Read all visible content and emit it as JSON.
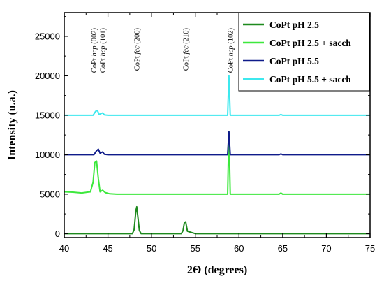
{
  "chart_data": {
    "type": "line",
    "xlabel": "2Θ (degrees)",
    "ylabel": "Intensity (u.a.)",
    "xlim": [
      40,
      75
    ],
    "ylim": [
      -500,
      28000
    ],
    "x_ticks": [
      40,
      45,
      50,
      55,
      60,
      65,
      70,
      75
    ],
    "y_ticks": [
      0,
      5000,
      10000,
      15000,
      20000,
      25000
    ],
    "legend_position": "top-right",
    "grid": false,
    "annotations": [
      {
        "text": "CoPt hcp (002)",
        "x": 43.4
      },
      {
        "text": "CoPt hcp (101)",
        "x": 44.4
      },
      {
        "text": "CoPt fcc (200)",
        "x": 48.3
      },
      {
        "text": "CoPt fcc (210)",
        "x": 53.9
      },
      {
        "text": "CoPt hcp (102)",
        "x": 59.0
      }
    ],
    "series": [
      {
        "name": "CoPt pH 2.5",
        "color": "#1e8a1e",
        "baseline": 0,
        "x": [
          40,
          45,
          47.8,
          48.0,
          48.2,
          48.3,
          48.4,
          48.6,
          48.8,
          50,
          53.4,
          53.6,
          53.75,
          53.9,
          54.1,
          55,
          60,
          65,
          70,
          75
        ],
        "values": [
          0,
          0,
          0,
          500,
          2900,
          3400,
          2400,
          400,
          0,
          0,
          0,
          400,
          1400,
          1500,
          300,
          0,
          0,
          0,
          0,
          0
        ]
      },
      {
        "name": "CoPt pH 2.5 + sacch",
        "color": "#3de83d",
        "baseline": 5000,
        "x": [
          40,
          41,
          42,
          43.0,
          43.3,
          43.5,
          43.7,
          43.9,
          44.1,
          44.4,
          44.7,
          45.2,
          46,
          50,
          55,
          58.7,
          58.85,
          59.0,
          59.2,
          64.6,
          64.8,
          65.0,
          70,
          75
        ],
        "values": [
          5300,
          5250,
          5150,
          5300,
          6500,
          9000,
          9200,
          7000,
          5300,
          5500,
          5200,
          5050,
          5000,
          5000,
          5000,
          5000,
          12900,
          5000,
          5000,
          5000,
          5150,
          5000,
          5000,
          5000
        ]
      },
      {
        "name": "CoPt pH 5.5",
        "color": "#0f1b8a",
        "baseline": 10000,
        "x": [
          40,
          43.4,
          43.7,
          43.9,
          44.1,
          44.4,
          44.6,
          45,
          50,
          58.7,
          58.85,
          59.0,
          64.6,
          64.8,
          65.0,
          75
        ],
        "values": [
          10000,
          10000,
          10500,
          10700,
          10200,
          10350,
          10050,
          10000,
          10000,
          10000,
          12900,
          10000,
          10000,
          10100,
          10000,
          10000
        ]
      },
      {
        "name": "CoPt pH 5.5 + sacch",
        "color": "#3de8ee",
        "baseline": 15000,
        "x": [
          40,
          43.3,
          43.6,
          43.8,
          44.0,
          44.4,
          44.6,
          45,
          50,
          58.7,
          58.85,
          59.0,
          64.6,
          64.8,
          65.0,
          75
        ],
        "values": [
          15000,
          15000,
          15500,
          15600,
          15100,
          15300,
          15050,
          15000,
          15000,
          15000,
          20000,
          15000,
          15000,
          15100,
          15000,
          15000
        ]
      }
    ]
  }
}
